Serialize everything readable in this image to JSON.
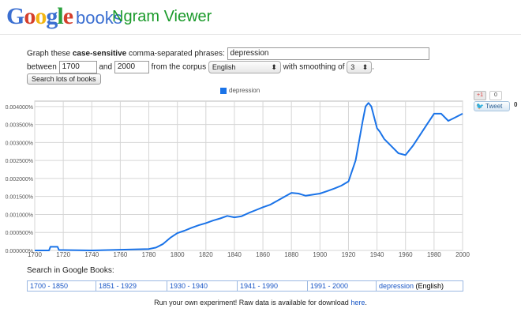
{
  "logo": {
    "letters": [
      "G",
      "o",
      "o",
      "g",
      "l",
      "e"
    ],
    "colors": [
      "#3b6fd1",
      "#d43f2c",
      "#f3b612",
      "#3b6fd1",
      "#29a13c",
      "#d43f2c"
    ],
    "books": "books"
  },
  "app_title": "Ngram Viewer",
  "form": {
    "prefix": "Graph these",
    "bold": "case-sensitive",
    "suffix": "comma-separated phrases:",
    "phrases_value": "depression",
    "between_label": "between",
    "year_start": "1700",
    "and_label": "and",
    "year_end": "2000",
    "corpus_label": "from the corpus",
    "corpus_value": "English",
    "smoothing_label": "with smoothing of",
    "smoothing_value": "3",
    "search_lots_label": "Search lots of books"
  },
  "share": {
    "gplus": "+1",
    "gplus_count": "0",
    "tweet": "Tweet",
    "tweet_count": "0"
  },
  "chart_data": {
    "type": "line",
    "xlim": [
      1700,
      2000
    ],
    "ylim": [
      0,
      0.00415
    ],
    "x_ticks": [
      "1700",
      "1720",
      "1740",
      "1760",
      "1780",
      "1800",
      "1820",
      "1840",
      "1860",
      "1880",
      "1900",
      "1920",
      "1940",
      "1960",
      "1980",
      "2000"
    ],
    "y_ticks": [
      "0.000000%",
      "0.000500%",
      "0.001000%",
      "0.001500%",
      "0.002000%",
      "0.002500%",
      "0.003000%",
      "0.003500%",
      "0.004000%"
    ],
    "series": [
      {
        "name": "depression",
        "color": "#1a73e8",
        "x": [
          1700,
          1710,
          1711,
          1716,
          1717,
          1720,
          1740,
          1760,
          1780,
          1785,
          1790,
          1795,
          1800,
          1805,
          1810,
          1815,
          1820,
          1825,
          1830,
          1835,
          1840,
          1845,
          1850,
          1855,
          1860,
          1865,
          1870,
          1875,
          1880,
          1885,
          1890,
          1895,
          1900,
          1905,
          1910,
          1915,
          1920,
          1925,
          1930,
          1932,
          1934,
          1936,
          1938,
          1940,
          1942,
          1945,
          1950,
          1955,
          1960,
          1965,
          1970,
          1975,
          1980,
          1985,
          1990,
          1995,
          2000
        ],
        "y": [
          0.0,
          0.0,
          0.0001,
          0.0001,
          1e-05,
          1e-05,
          0.0,
          2e-05,
          4e-05,
          8e-05,
          0.00018,
          0.00035,
          0.00048,
          0.00055,
          0.00063,
          0.0007,
          0.00076,
          0.00083,
          0.00089,
          0.00096,
          0.00092,
          0.00095,
          0.00104,
          0.00112,
          0.0012,
          0.00127,
          0.00138,
          0.00149,
          0.0016,
          0.00158,
          0.00152,
          0.00155,
          0.00158,
          0.00165,
          0.00172,
          0.0018,
          0.00192,
          0.0025,
          0.0036,
          0.004,
          0.0041,
          0.004,
          0.0037,
          0.0034,
          0.0033,
          0.0031,
          0.0029,
          0.0027,
          0.00265,
          0.0029,
          0.0032,
          0.0035,
          0.0038,
          0.0038,
          0.0036,
          0.0037,
          0.0038
        ]
      }
    ]
  },
  "search_in": "Search in Google Books:",
  "ranges": [
    "1700 - 1850",
    "1851 - 1929",
    "1930 - 1940",
    "1941 - 1990",
    "1991 - 2000"
  ],
  "term_link": "depression",
  "term_lang": "(English)",
  "footer": {
    "text": "Run your own experiment! Raw data is available for download",
    "link": "here",
    "period": "."
  }
}
